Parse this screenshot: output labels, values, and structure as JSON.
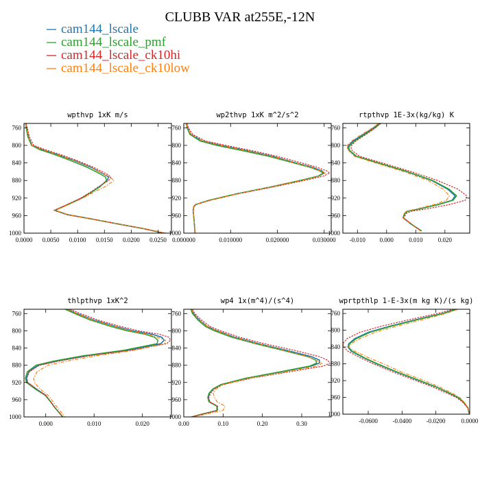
{
  "title": "CLUBB VAR at255E,-12N",
  "legend": [
    {
      "name": "cam144_lscale",
      "color": "#1f77b4"
    },
    {
      "name": "cam144_lscale_pmf",
      "color": "#2ca02c"
    },
    {
      "name": "cam144_lscale_ck10hi",
      "color": "#d62728"
    },
    {
      "name": "cam144_lscale_ck10low",
      "color": "#ff7f0e"
    }
  ],
  "chart_data": [
    {
      "type": "line",
      "title": "wpthvp  1xK m/s",
      "ylim": [
        1000,
        750
      ],
      "xlim": [
        0.0,
        0.0275
      ],
      "yticks": [
        760,
        800,
        840,
        880,
        920,
        960,
        1000
      ],
      "xticks": [
        0.0,
        0.005,
        0.01,
        0.015,
        0.02,
        0.025
      ],
      "xticklabels": [
        "0.0000",
        "0.0050",
        "0.0100",
        "0.0150",
        "0.0200",
        "0.0250"
      ],
      "y": [
        750,
        760,
        780,
        800,
        810,
        820,
        835,
        850,
        865,
        872,
        880,
        895,
        905,
        920,
        935,
        948,
        958,
        968,
        980,
        990,
        1000
      ],
      "series": [
        {
          "name": "cam144_lscale",
          "values": [
            0.0003,
            0.0005,
            0.0008,
            0.0015,
            0.0035,
            0.006,
            0.0095,
            0.0125,
            0.0148,
            0.0158,
            0.0155,
            0.014,
            0.0128,
            0.0108,
            0.0082,
            0.0058,
            0.0082,
            0.0128,
            0.018,
            0.0225,
            0.026
          ]
        },
        {
          "name": "cam144_lscale_pmf",
          "values": [
            0.0003,
            0.0004,
            0.0007,
            0.0014,
            0.003,
            0.0055,
            0.0088,
            0.0118,
            0.0142,
            0.0152,
            0.0154,
            0.0141,
            0.0128,
            0.0107,
            0.0081,
            0.0057,
            0.0081,
            0.0127,
            0.0179,
            0.0224,
            0.026
          ]
        },
        {
          "name": "cam144_lscale_ck10hi",
          "values": [
            0.0004,
            0.0006,
            0.001,
            0.0018,
            0.004,
            0.0066,
            0.01,
            0.013,
            0.0154,
            0.0162,
            0.0158,
            0.0138,
            0.0126,
            0.0106,
            0.008,
            0.0056,
            0.008,
            0.0126,
            0.0178,
            0.0223,
            0.0262
          ]
        },
        {
          "name": "cam144_lscale_ck10low",
          "values": [
            0.0003,
            0.0005,
            0.0008,
            0.0015,
            0.0035,
            0.006,
            0.0094,
            0.0124,
            0.0148,
            0.016,
            0.0168,
            0.015,
            0.0133,
            0.011,
            0.0083,
            0.0059,
            0.0083,
            0.0129,
            0.0181,
            0.0226,
            0.0265
          ]
        }
      ]
    },
    {
      "type": "line",
      "title": "wp2thvp  1xK m^2/s^2",
      "ylim": [
        1000,
        750
      ],
      "xlim": [
        0.0,
        0.0315
      ],
      "yticks": [
        760,
        800,
        840,
        880,
        920,
        960,
        1000
      ],
      "xticks": [
        0.0,
        0.01,
        0.02,
        0.03
      ],
      "xticklabels": [
        "0.000000",
        "0.010000",
        "0.020000",
        "0.030000"
      ],
      "y": [
        750,
        760,
        775,
        790,
        800,
        812,
        825,
        840,
        850,
        858,
        863,
        870,
        880,
        895,
        910,
        925,
        935,
        940,
        950,
        970,
        1000
      ],
      "series": [
        {
          "name": "cam144_lscale",
          "values": [
            0.0006,
            0.0008,
            0.0015,
            0.004,
            0.008,
            0.0135,
            0.019,
            0.024,
            0.0275,
            0.0295,
            0.03,
            0.0288,
            0.025,
            0.0185,
            0.0115,
            0.0055,
            0.0025,
            0.0021,
            0.002,
            0.0022,
            0.0024
          ]
        },
        {
          "name": "cam144_lscale_pmf",
          "values": [
            0.0005,
            0.0007,
            0.0013,
            0.0035,
            0.007,
            0.0125,
            0.0182,
            0.0235,
            0.027,
            0.029,
            0.0298,
            0.0287,
            0.0248,
            0.0184,
            0.0114,
            0.0054,
            0.0025,
            0.0021,
            0.002,
            0.0022,
            0.0024
          ]
        },
        {
          "name": "cam144_lscale_ck10hi",
          "values": [
            0.0007,
            0.001,
            0.0019,
            0.0046,
            0.009,
            0.0146,
            0.02,
            0.0252,
            0.0285,
            0.0305,
            0.0312,
            0.0298,
            0.0258,
            0.019,
            0.0118,
            0.0057,
            0.0026,
            0.0022,
            0.002,
            0.0022,
            0.0024
          ]
        },
        {
          "name": "cam144_lscale_ck10low",
          "values": [
            0.0006,
            0.0008,
            0.0015,
            0.004,
            0.0079,
            0.0133,
            0.0188,
            0.0238,
            0.0272,
            0.0292,
            0.0302,
            0.029,
            0.0252,
            0.0186,
            0.0116,
            0.0056,
            0.0025,
            0.0021,
            0.002,
            0.0022,
            0.0024
          ]
        }
      ]
    },
    {
      "type": "line",
      "title": "rtpthvp  1E-3x(kg/kg) K",
      "ylim": [
        1000,
        750
      ],
      "xlim": [
        -0.015,
        0.0285
      ],
      "yticks": [
        760,
        800,
        840,
        880,
        920,
        960,
        1000
      ],
      "xticks": [
        -0.01,
        0.0,
        0.01,
        0.02
      ],
      "xticklabels": [
        "-0.010",
        "0.000",
        "0.010",
        "0.020"
      ],
      "y": [
        750,
        760,
        775,
        790,
        800,
        805,
        812,
        825,
        840,
        860,
        880,
        900,
        915,
        925,
        935,
        945,
        950,
        955,
        965,
        980,
        995
      ],
      "series": [
        {
          "name": "cam144_lscale",
          "values": [
            -0.0025,
            -0.0045,
            -0.008,
            -0.0115,
            -0.013,
            -0.0133,
            -0.0128,
            -0.0105,
            -0.003,
            0.007,
            0.0155,
            0.021,
            0.0235,
            0.0225,
            0.0175,
            0.011,
            0.0072,
            0.0062,
            0.0056,
            0.0085,
            0.012
          ]
        },
        {
          "name": "cam144_lscale_pmf",
          "values": [
            -0.0022,
            -0.004,
            -0.0075,
            -0.011,
            -0.0125,
            -0.013,
            -0.0126,
            -0.0103,
            -0.0028,
            0.0072,
            0.0158,
            0.0215,
            0.024,
            0.0228,
            0.0178,
            0.0112,
            0.0073,
            0.0063,
            0.0057,
            0.0086,
            0.012
          ]
        },
        {
          "name": "cam144_lscale_ck10hi",
          "values": [
            -0.002,
            -0.0038,
            -0.007,
            -0.0105,
            -0.012,
            -0.0122,
            -0.0118,
            -0.0092,
            -0.0015,
            0.0085,
            0.0175,
            0.0245,
            0.0275,
            0.027,
            0.0215,
            0.0135,
            0.0085,
            0.0068,
            0.0058,
            0.0087,
            0.0118
          ]
        },
        {
          "name": "cam144_lscale_ck10low",
          "values": [
            -0.0028,
            -0.0048,
            -0.0085,
            -0.012,
            -0.0135,
            -0.0136,
            -0.013,
            -0.011,
            -0.0038,
            0.006,
            0.0142,
            0.0195,
            0.0215,
            0.0205,
            0.0162,
            0.0102,
            0.0068,
            0.006,
            0.0055,
            0.0084,
            0.0116
          ]
        }
      ]
    },
    {
      "type": "line",
      "title": "thlpthvp  1xK^2",
      "ylim": [
        1000,
        750
      ],
      "xlim": [
        -0.0045,
        0.026
      ],
      "yticks": [
        760,
        800,
        840,
        880,
        920,
        960,
        1000
      ],
      "xticks": [
        0.0,
        0.01,
        0.02
      ],
      "xticklabels": [
        "0.000",
        "0.010",
        "0.020"
      ],
      "y": [
        750,
        760,
        775,
        790,
        800,
        808,
        815,
        822,
        830,
        845,
        858,
        870,
        880,
        895,
        910,
        920,
        935,
        950,
        965,
        980,
        1000
      ],
      "series": [
        {
          "name": "cam144_lscale",
          "values": [
            0.0045,
            0.0065,
            0.01,
            0.0145,
            0.018,
            0.022,
            0.024,
            0.0245,
            0.0238,
            0.017,
            0.0085,
            0.0025,
            -0.0015,
            -0.0035,
            -0.004,
            -0.0038,
            -0.002,
            0.0,
            0.001,
            0.002,
            0.0035
          ]
        },
        {
          "name": "cam144_lscale_pmf",
          "values": [
            0.004,
            0.006,
            0.0092,
            0.0135,
            0.0168,
            0.0205,
            0.0225,
            0.0232,
            0.023,
            0.0162,
            0.0078,
            0.0018,
            -0.002,
            -0.0038,
            -0.0042,
            -0.004,
            -0.0022,
            -0.0001,
            0.001,
            0.002,
            0.0035
          ]
        },
        {
          "name": "cam144_lscale_ck10hi",
          "values": [
            0.005,
            0.0072,
            0.0108,
            0.0155,
            0.0192,
            0.0235,
            0.0255,
            0.0258,
            0.025,
            0.0178,
            0.009,
            0.0028,
            -0.0013,
            -0.0034,
            -0.0039,
            -0.0037,
            -0.0019,
            0.0,
            0.001,
            0.002,
            0.0036
          ]
        },
        {
          "name": "cam144_lscale_ck10low",
          "values": [
            0.0045,
            0.0064,
            0.0098,
            0.0142,
            0.0175,
            0.0212,
            0.023,
            0.0248,
            0.0246,
            0.0185,
            0.0105,
            0.0045,
            0.0005,
            -0.0018,
            -0.0025,
            -0.0023,
            -0.0012,
            0.0005,
            0.0015,
            0.0025,
            0.004
          ]
        }
      ]
    },
    {
      "type": "line",
      "title": "wp4  1x(m^4)/(s^4)",
      "ylim": [
        1000,
        750
      ],
      "xlim": [
        0.0,
        0.375
      ],
      "yticks": [
        760,
        800,
        840,
        880,
        920,
        960,
        1000
      ],
      "xticks": [
        0.0,
        0.1,
        0.2,
        0.3
      ],
      "xticklabels": [
        "0.00",
        "0.10",
        "0.20",
        "0.30"
      ],
      "y": [
        750,
        760,
        775,
        790,
        800,
        815,
        830,
        845,
        860,
        868,
        875,
        882,
        895,
        910,
        925,
        935,
        945,
        955,
        965,
        975,
        985,
        995,
        1000
      ],
      "series": [
        {
          "name": "cam144_lscale",
          "values": [
            0.02,
            0.025,
            0.04,
            0.06,
            0.085,
            0.13,
            0.19,
            0.26,
            0.325,
            0.345,
            0.345,
            0.325,
            0.25,
            0.16,
            0.095,
            0.075,
            0.065,
            0.062,
            0.065,
            0.085,
            0.085,
            0.04,
            0.02
          ]
        },
        {
          "name": "cam144_lscale_pmf",
          "values": [
            0.018,
            0.022,
            0.036,
            0.055,
            0.078,
            0.122,
            0.182,
            0.25,
            0.315,
            0.335,
            0.338,
            0.32,
            0.246,
            0.158,
            0.094,
            0.074,
            0.064,
            0.061,
            0.064,
            0.084,
            0.084,
            0.04,
            0.02
          ]
        },
        {
          "name": "cam144_lscale_ck10hi",
          "values": [
            0.022,
            0.028,
            0.045,
            0.067,
            0.094,
            0.142,
            0.205,
            0.28,
            0.345,
            0.365,
            0.372,
            0.355,
            0.27,
            0.172,
            0.1,
            0.078,
            0.068,
            0.064,
            0.066,
            0.086,
            0.086,
            0.041,
            0.02
          ]
        },
        {
          "name": "cam144_lscale_ck10low",
          "values": [
            0.02,
            0.025,
            0.04,
            0.06,
            0.085,
            0.128,
            0.186,
            0.255,
            0.315,
            0.335,
            0.352,
            0.34,
            0.262,
            0.168,
            0.1,
            0.082,
            0.075,
            0.078,
            0.085,
            0.105,
            0.1,
            0.05,
            0.025
          ]
        }
      ]
    },
    {
      "type": "line",
      "title": "wprtpthlp  1-E-3x(m kg K)/(s kg)",
      "ylim": [
        1000,
        750
      ],
      "xlim": [
        -0.075,
        0.0
      ],
      "yticks": [
        760,
        800,
        840,
        880,
        920,
        960,
        1000
      ],
      "xticks": [
        -0.06,
        -0.04,
        -0.02,
        0.0
      ],
      "xticklabels": [
        "-0.0600",
        "-0.0400",
        "-0.0200",
        "0.0000"
      ],
      "y": [
        750,
        760,
        775,
        790,
        805,
        820,
        832,
        840,
        850,
        865,
        880,
        900,
        920,
        935,
        950,
        960,
        970,
        985,
        1000
      ],
      "series": [
        {
          "name": "cam144_lscale",
          "values": [
            -0.008,
            -0.016,
            -0.032,
            -0.047,
            -0.06,
            -0.068,
            -0.0715,
            -0.072,
            -0.07,
            -0.063,
            -0.055,
            -0.043,
            -0.03,
            -0.02,
            -0.012,
            -0.007,
            -0.004,
            -0.001,
            -0.0003
          ]
        },
        {
          "name": "cam144_lscale_pmf",
          "values": [
            -0.0075,
            -0.0155,
            -0.031,
            -0.046,
            -0.059,
            -0.067,
            -0.071,
            -0.0718,
            -0.0695,
            -0.0625,
            -0.0545,
            -0.0425,
            -0.0295,
            -0.0198,
            -0.0118,
            -0.0069,
            -0.0039,
            -0.001,
            -0.0003
          ]
        },
        {
          "name": "cam144_lscale_ck10hi",
          "values": [
            -0.0095,
            -0.019,
            -0.036,
            -0.052,
            -0.065,
            -0.0725,
            -0.075,
            -0.0745,
            -0.072,
            -0.065,
            -0.057,
            -0.045,
            -0.032,
            -0.022,
            -0.0135,
            -0.008,
            -0.0045,
            -0.0012,
            -0.0003
          ]
        },
        {
          "name": "cam144_lscale_ck10low",
          "values": [
            -0.007,
            -0.014,
            -0.028,
            -0.043,
            -0.056,
            -0.065,
            -0.07,
            -0.0715,
            -0.068,
            -0.06,
            -0.051,
            -0.04,
            -0.027,
            -0.018,
            -0.0105,
            -0.006,
            -0.0035,
            -0.0009,
            -0.0003
          ]
        }
      ]
    }
  ]
}
